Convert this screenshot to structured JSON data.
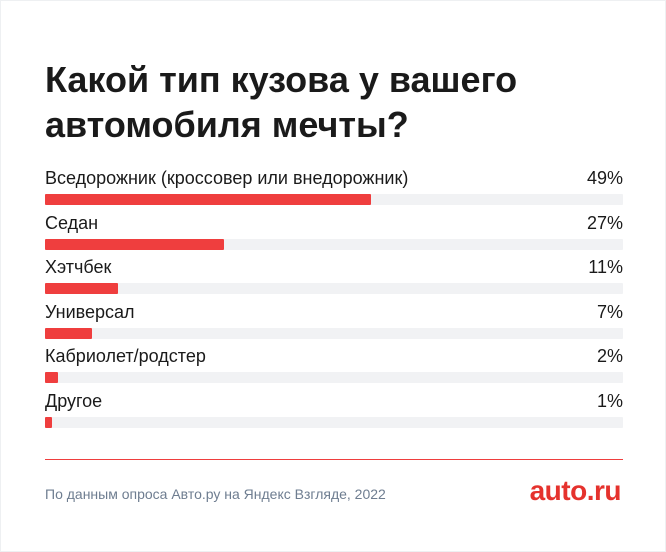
{
  "title": "Какой тип кузова у вашего автомобиля мечты?",
  "chart_data": {
    "type": "bar",
    "orientation": "horizontal",
    "title": "Какой тип кузова у вашего автомобиля мечты?",
    "categories": [
      "Вседорожник (кроссовер или внедорожник)",
      "Седан",
      "Хэтчбек",
      "Универсал",
      "Кабриолет/родстер",
      "Другое"
    ],
    "values": [
      49,
      27,
      11,
      7,
      2,
      1
    ],
    "value_labels": [
      "49%",
      "27%",
      "11%",
      "7%",
      "2%",
      "1%"
    ],
    "xlim": [
      0,
      100
    ],
    "unit": "%",
    "bar_color": "#ef3e3e",
    "track_color": "#f1f2f4",
    "grid": false
  },
  "footer": {
    "source": "По данным опроса Авто.ру на Яндекс Взгляде, 2022",
    "logo": "auto.ru"
  },
  "colors": {
    "accent": "#ef3e3e",
    "text": "#1a1a1a",
    "muted": "#6e7d90"
  }
}
